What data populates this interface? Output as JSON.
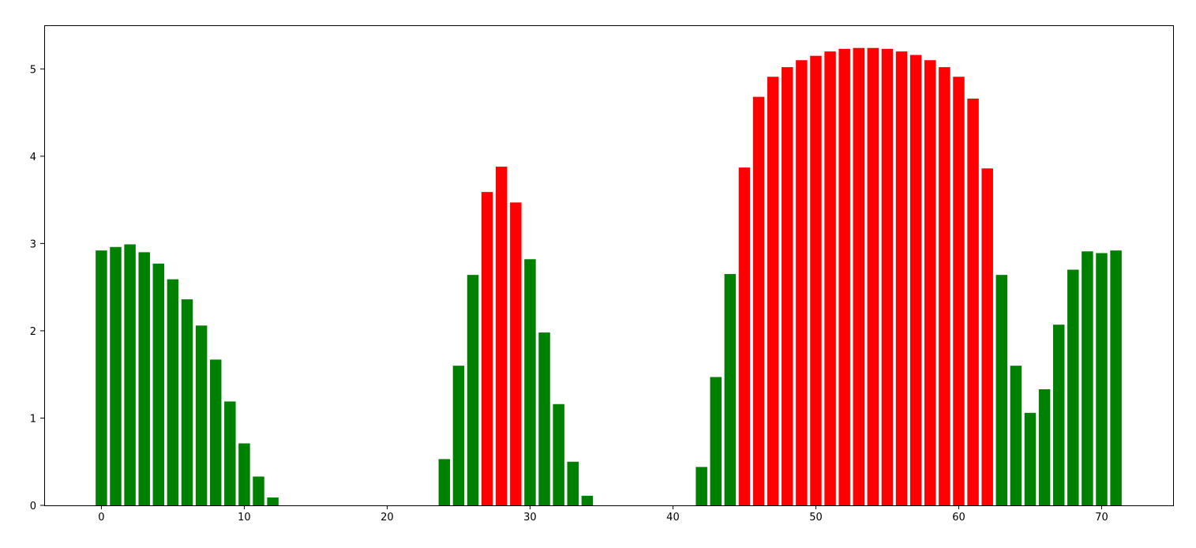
{
  "chart_data": {
    "type": "bar",
    "title": "",
    "xlabel": "",
    "ylabel": "",
    "xlim": [
      -4,
      75
    ],
    "ylim": [
      0,
      5.5
    ],
    "grid": false,
    "legend": "none",
    "xticks": [
      0,
      10,
      20,
      30,
      40,
      50,
      60,
      70
    ],
    "yticks": [
      0,
      1,
      2,
      3,
      4,
      5
    ],
    "xtick_labels": [
      "0",
      "10",
      "20",
      "30",
      "40",
      "50",
      "60",
      "70"
    ],
    "ytick_labels": [
      "0",
      "1",
      "2",
      "3",
      "4",
      "5"
    ],
    "colors": {
      "low": "#008000",
      "high": "#ff0000"
    },
    "bars": [
      {
        "x": 0,
        "value": 2.92,
        "color": "low"
      },
      {
        "x": 1,
        "value": 2.96,
        "color": "low"
      },
      {
        "x": 2,
        "value": 2.99,
        "color": "low"
      },
      {
        "x": 3,
        "value": 2.9,
        "color": "low"
      },
      {
        "x": 4,
        "value": 2.77,
        "color": "low"
      },
      {
        "x": 5,
        "value": 2.59,
        "color": "low"
      },
      {
        "x": 6,
        "value": 2.36,
        "color": "low"
      },
      {
        "x": 7,
        "value": 2.06,
        "color": "low"
      },
      {
        "x": 8,
        "value": 1.67,
        "color": "low"
      },
      {
        "x": 9,
        "value": 1.19,
        "color": "low"
      },
      {
        "x": 10,
        "value": 0.71,
        "color": "low"
      },
      {
        "x": 11,
        "value": 0.33,
        "color": "low"
      },
      {
        "x": 12,
        "value": 0.09,
        "color": "low"
      },
      {
        "x": 24,
        "value": 0.53,
        "color": "low"
      },
      {
        "x": 25,
        "value": 1.6,
        "color": "low"
      },
      {
        "x": 26,
        "value": 2.64,
        "color": "low"
      },
      {
        "x": 27,
        "value": 3.59,
        "color": "high"
      },
      {
        "x": 28,
        "value": 3.88,
        "color": "high"
      },
      {
        "x": 29,
        "value": 3.47,
        "color": "high"
      },
      {
        "x": 30,
        "value": 2.82,
        "color": "low"
      },
      {
        "x": 31,
        "value": 1.98,
        "color": "low"
      },
      {
        "x": 32,
        "value": 1.16,
        "color": "low"
      },
      {
        "x": 33,
        "value": 0.5,
        "color": "low"
      },
      {
        "x": 34,
        "value": 0.11,
        "color": "low"
      },
      {
        "x": 42,
        "value": 0.44,
        "color": "low"
      },
      {
        "x": 43,
        "value": 1.47,
        "color": "low"
      },
      {
        "x": 44,
        "value": 2.65,
        "color": "low"
      },
      {
        "x": 45,
        "value": 3.87,
        "color": "high"
      },
      {
        "x": 46,
        "value": 4.68,
        "color": "high"
      },
      {
        "x": 47,
        "value": 4.91,
        "color": "high"
      },
      {
        "x": 48,
        "value": 5.02,
        "color": "high"
      },
      {
        "x": 49,
        "value": 5.1,
        "color": "high"
      },
      {
        "x": 50,
        "value": 5.15,
        "color": "high"
      },
      {
        "x": 51,
        "value": 5.2,
        "color": "high"
      },
      {
        "x": 52,
        "value": 5.23,
        "color": "high"
      },
      {
        "x": 53,
        "value": 5.24,
        "color": "high"
      },
      {
        "x": 54,
        "value": 5.24,
        "color": "high"
      },
      {
        "x": 55,
        "value": 5.23,
        "color": "high"
      },
      {
        "x": 56,
        "value": 5.2,
        "color": "high"
      },
      {
        "x": 57,
        "value": 5.16,
        "color": "high"
      },
      {
        "x": 58,
        "value": 5.1,
        "color": "high"
      },
      {
        "x": 59,
        "value": 5.02,
        "color": "high"
      },
      {
        "x": 60,
        "value": 4.91,
        "color": "high"
      },
      {
        "x": 61,
        "value": 4.66,
        "color": "high"
      },
      {
        "x": 62,
        "value": 3.86,
        "color": "high"
      },
      {
        "x": 63,
        "value": 2.64,
        "color": "low"
      },
      {
        "x": 64,
        "value": 1.6,
        "color": "low"
      },
      {
        "x": 65,
        "value": 1.06,
        "color": "low"
      },
      {
        "x": 66,
        "value": 1.33,
        "color": "low"
      },
      {
        "x": 67,
        "value": 2.07,
        "color": "low"
      },
      {
        "x": 68,
        "value": 2.7,
        "color": "low"
      },
      {
        "x": 69,
        "value": 2.91,
        "color": "low"
      },
      {
        "x": 70,
        "value": 2.89,
        "color": "low"
      },
      {
        "x": 71,
        "value": 2.92,
        "color": "low"
      }
    ]
  }
}
